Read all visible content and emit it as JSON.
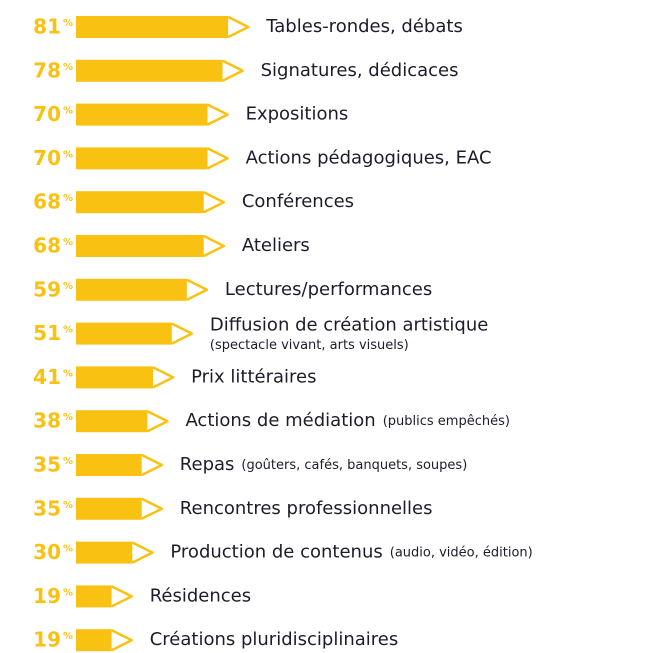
{
  "chart_data": {
    "type": "bar",
    "orientation": "horizontal",
    "color": "#f9c213",
    "unit": "%",
    "categories": [
      "Tables-rondes, débats",
      "Signatures, dédicaces",
      "Expositions",
      "Actions pédagogiques, EAC",
      "Conférences",
      "Ateliers",
      "Lectures/performances",
      "Diffusion de création artistique",
      "Prix littéraires",
      "Actions de médiation",
      "Repas",
      "Rencontres professionnelles",
      "Production de contenus",
      "Résidences",
      "Créations pluridisciplinaires"
    ],
    "category_notes": [
      null,
      null,
      null,
      null,
      null,
      null,
      null,
      "(spectacle vivant, arts visuels)",
      null,
      "(publics empêchés)",
      "(goûters, cafés, banquets, soupes)",
      null,
      "(audio, vidéo, édition)",
      null,
      null
    ],
    "values": [
      81,
      78,
      70,
      70,
      68,
      68,
      59,
      51,
      41,
      38,
      35,
      35,
      30,
      19,
      19
    ]
  }
}
